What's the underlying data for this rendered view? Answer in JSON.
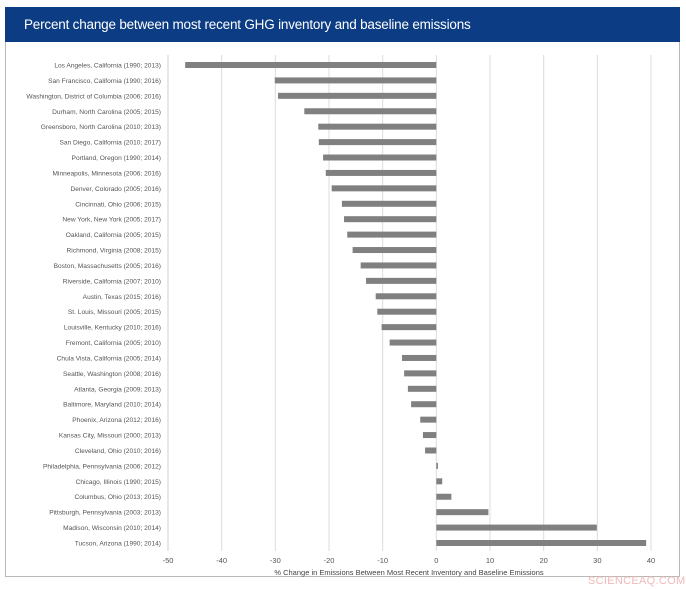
{
  "chart_data": {
    "type": "bar",
    "orientation": "horizontal",
    "title": "Percent change between most recent GHG inventory and baseline emissions",
    "xlabel": "% Change in Emissions Between Most Recent Inventory and Baseline Emissions",
    "ylabel": "",
    "xlim": [
      -50,
      40
    ],
    "xticks": [
      -50,
      -40,
      -30,
      -20,
      -10,
      0,
      10,
      20,
      30,
      40
    ],
    "grid": true,
    "bar_color": "#808080",
    "header_color": "#0b3c84",
    "categories": [
      "Los Angeles, California (1990; 2013)",
      "San Francisco, California (1990; 2016)",
      "Washington, District of Columbia (2006; 2016)",
      "Durham, North Carolina (2005; 2015)",
      "Greensboro, North Carolina (2010; 2013)",
      "San Diego, California (2010; 2017)",
      "Portland, Oregon (1990; 2014)",
      "Minneapolis, Minnesota (2006; 2016)",
      "Denver, Colorado (2005; 2016)",
      "Cincinnati, Ohio (2006; 2015)",
      "New York, New York (2005; 2017)",
      "Oakland, California (2005; 2015)",
      "Richmond, Virginia (2008; 2015)",
      "Boston, Massachusetts (2005; 2016)",
      "Riverside, California (2007; 2010)",
      "Austin, Texas (2015; 2016)",
      "St. Louis, Missouri (2005; 2015)",
      "Louisville, Kentucky (2010; 2016)",
      "Fremont, California (2005; 2010)",
      "Chula Vista, California (2005; 2014)",
      "Seattle, Washington (2008; 2016)",
      "Atlanta, Georgia (2009; 2013)",
      "Baltimore, Maryland (2010; 2014)",
      "Phoenix, Arizona (2012; 2016)",
      "Kansas City, Missouri (2000; 2013)",
      "Cleveland, Ohio (2010; 2016)",
      "Philadelphia, Pennsylvania (2006; 2012)",
      "Chicago, Illinois (1990; 2015)",
      "Columbus, Ohio (2013; 2015)",
      "Pittsburgh, Pennsylvania (2003; 2013)",
      "Madison, Wisconsin (2010; 2014)",
      "Tucson, Arizona (1990; 2014)"
    ],
    "values": [
      -46.8,
      -30.1,
      -29.5,
      -24.6,
      -22.0,
      -21.9,
      -21.1,
      -20.6,
      -19.5,
      -17.6,
      -17.2,
      -16.6,
      -15.6,
      -14.1,
      -13.1,
      -11.3,
      -11.0,
      -10.2,
      -8.7,
      -6.4,
      -6.0,
      -5.3,
      -4.7,
      -3.0,
      -2.5,
      -2.1,
      0.3,
      1.1,
      2.8,
      9.7,
      29.9,
      39.1
    ]
  },
  "watermark": "SCIENCEAQ.COM"
}
